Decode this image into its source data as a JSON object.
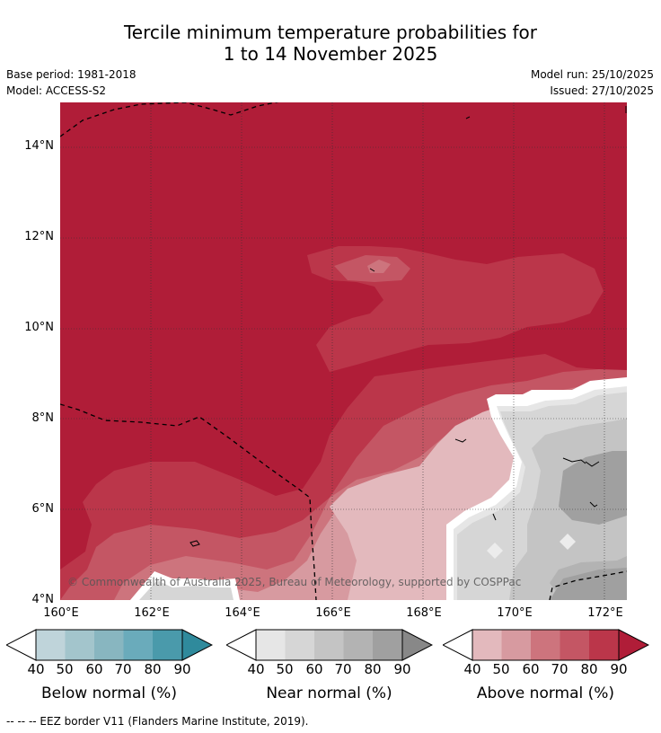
{
  "title": {
    "line1": "Tercile minimum temperature probabilities for",
    "line2": "1 to 14 November 2025"
  },
  "meta": {
    "base_period": "Base period: 1981-2018",
    "model": "Model: ACCESS-S2",
    "model_run": "Model run: 25/10/2025",
    "issued": "Issued: 27/10/2025"
  },
  "map": {
    "lon_labels": [
      "160°E",
      "162°E",
      "164°E",
      "166°E",
      "168°E",
      "170°E",
      "172°E"
    ],
    "lat_labels": [
      "14°N",
      "12°N",
      "10°N",
      "8°N",
      "6°N",
      "4°N"
    ],
    "lon_range": [
      160,
      172.5
    ],
    "lat_range": [
      4,
      15
    ],
    "copyright": "© Commonwealth of Australia 2025, Bureau of Meteorology, supported by COSPPac"
  },
  "colorbars": [
    {
      "name": "below",
      "title": "Below normal (%)",
      "ticks": [
        "40",
        "50",
        "60",
        "70",
        "80",
        "90"
      ],
      "colors": [
        "#bfd4da",
        "#a3c5cc",
        "#88b6c0",
        "#6aabbb",
        "#4a9aab",
        "#2f8a9c"
      ]
    },
    {
      "name": "near",
      "title": "Near normal (%)",
      "ticks": [
        "40",
        "50",
        "60",
        "70",
        "80",
        "90"
      ],
      "colors": [
        "#e6e6e6",
        "#d6d6d6",
        "#c4c4c4",
        "#b3b3b3",
        "#a0a0a0",
        "#888888"
      ]
    },
    {
      "name": "above",
      "title": "Above normal (%)",
      "ticks": [
        "40",
        "50",
        "60",
        "70",
        "80",
        "90"
      ],
      "colors": [
        "#e3b9bd",
        "#d79aa0",
        "#cd747d",
        "#c45664",
        "#bb364a",
        "#b01d38"
      ]
    }
  ],
  "footer": "-- -- -- EEZ border V11 (Flanders Marine Institute, 2019)."
}
